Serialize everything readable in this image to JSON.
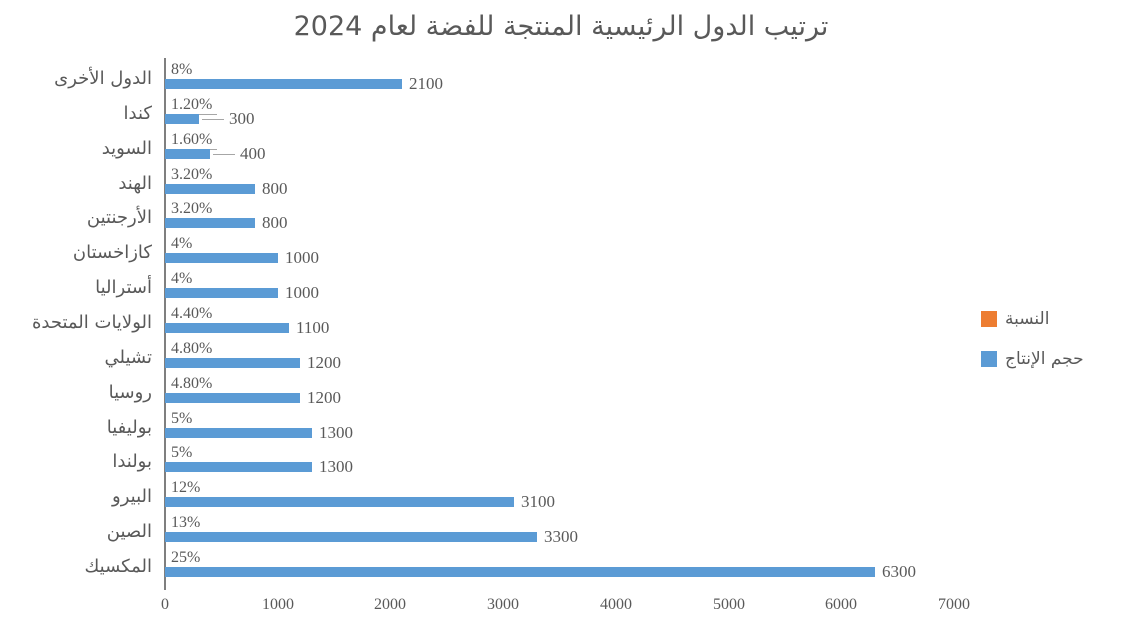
{
  "chart_data": {
    "type": "bar",
    "orientation": "horizontal",
    "title": "ترتيب الدول الرئيسية المنتجة للفضة لعام 2024",
    "categories": [
      "الدول الأخرى",
      "كندا",
      "السويد",
      "الهند",
      "الأرجنتين",
      "كازاخستان",
      "أستراليا",
      "الولايات المتحدة",
      "تشيلي",
      "روسيا",
      "بوليفيا",
      "بولندا",
      "البيرو",
      "الصين",
      "المكسيك"
    ],
    "series": [
      {
        "name": "النسبة",
        "color": "#ED7D31",
        "unit": "%",
        "values": [
          8,
          1.2,
          1.6,
          3.2,
          3.2,
          4,
          4,
          4.4,
          4.8,
          4.8,
          5,
          5,
          12,
          13,
          25
        ],
        "labels": [
          "8%",
          "1.20%",
          "1.60%",
          "3.20%",
          "3.20%",
          "4%",
          "4%",
          "4.40%",
          "4.80%",
          "4.80%",
          "5%",
          "5%",
          "12%",
          "13%",
          "25%"
        ]
      },
      {
        "name": "حجم الإنتاج",
        "color": "#5B9BD5",
        "values": [
          2100,
          300,
          400,
          800,
          800,
          1000,
          1000,
          1100,
          1200,
          1200,
          1300,
          1300,
          3100,
          3300,
          6300
        ]
      }
    ],
    "x_ticks": [
      0,
      1000,
      2000,
      3000,
      4000,
      5000,
      6000,
      7000
    ],
    "x_tick_labels": [
      "0",
      "1000",
      "2000",
      "3000",
      "4000",
      "5000",
      "6000",
      "7000"
    ],
    "xlim": [
      0,
      7000
    ],
    "grid": false,
    "legend_position": "right",
    "text_color": "#595959"
  }
}
